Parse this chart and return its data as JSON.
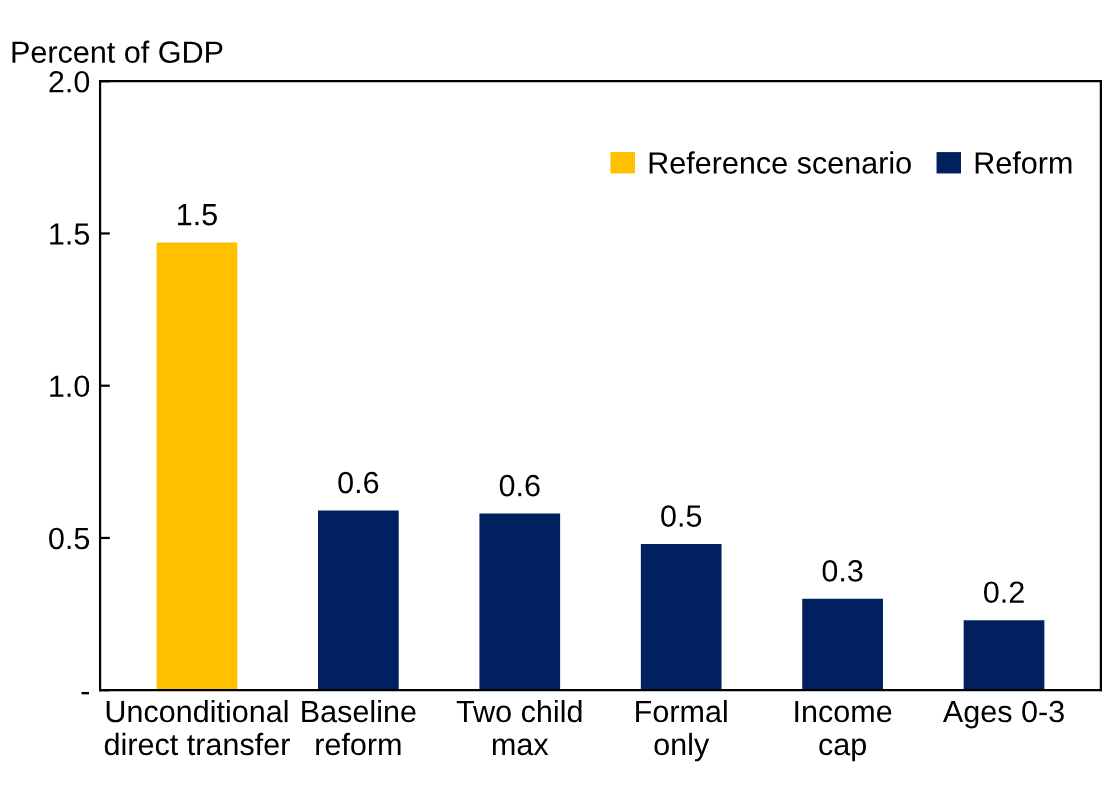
{
  "chart_data": {
    "type": "bar",
    "ylabel": "Percent of GDP",
    "categories": [
      "Unconditional\ndirect transfer",
      "Baseline\nreform",
      "Two child\nmax",
      "Formal\nonly",
      "Income\ncap",
      "Ages 0-3"
    ],
    "series": [
      {
        "name": "Reference scenario",
        "color": "#ffc000",
        "values": [
          1.47,
          null,
          null,
          null,
          null,
          null
        ],
        "value_labels": [
          "1.5",
          null,
          null,
          null,
          null,
          null
        ]
      },
      {
        "name": "Reform",
        "color": "#002060",
        "values": [
          null,
          0.59,
          0.58,
          0.48,
          0.3,
          0.23
        ],
        "value_labels": [
          null,
          "0.6",
          "0.6",
          "0.5",
          "0.3",
          "0.2"
        ]
      }
    ],
    "ylim": [
      0,
      2.0
    ],
    "yticks": [
      {
        "value": 0,
        "label": "-"
      },
      0.5,
      {
        "value": 1.0,
        "label": "1.0"
      },
      1.5,
      {
        "value": 2.0,
        "label": "2.0"
      }
    ],
    "grid": false,
    "legend": "top right"
  }
}
